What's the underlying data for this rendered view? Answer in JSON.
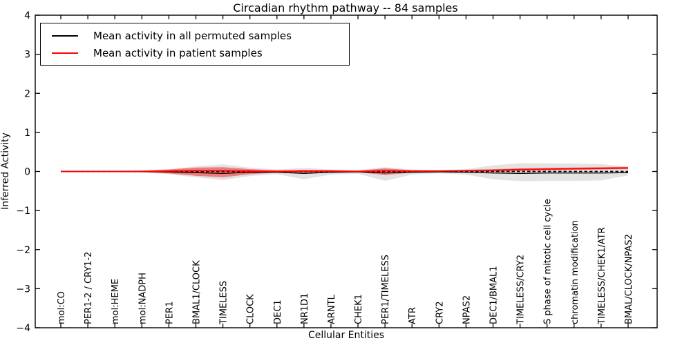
{
  "chart_data": {
    "type": "line",
    "title": "Circadian rhythm pathway -- 84 samples",
    "xlabel": "Cellular Entities",
    "ylabel": "Inferred Activity",
    "ylim": [
      -4,
      4
    ],
    "yticks": [
      -4,
      -3,
      -2,
      -1,
      0,
      1,
      2,
      3,
      4
    ],
    "grid": false,
    "legend_position": "upper left",
    "categories": [
      "mol:CO",
      "PER1-2 / CRY1-2",
      "mol:HEME",
      "mol:NADPH",
      "PER1",
      "BMAL1/CLOCK",
      "TIMELESS",
      "CLOCK",
      "DEC1",
      "NR1D1",
      "ARNTL",
      "CHEK1",
      "PER1/TIMELESS",
      "ATR",
      "CRY2",
      "NPAS2",
      "DEC1/BMAL1",
      "TIMELESS/CRY2",
      "S phase of mitotic cell cycle",
      "chromatin modification",
      "TIMELESS/CHEK1/ATR",
      "BMAL/CLOCK/NPAS2"
    ],
    "series": [
      {
        "name": "Mean activity in all permuted samples",
        "color": "#000000",
        "line_width": 1.3,
        "values": [
          0,
          0,
          0,
          0,
          -0.01,
          -0.03,
          -0.05,
          -0.02,
          -0.02,
          -0.05,
          -0.02,
          -0.01,
          -0.04,
          -0.02,
          -0.01,
          -0.02,
          -0.04,
          -0.05,
          -0.04,
          -0.04,
          -0.04,
          -0.03
        ],
        "band_upper": [
          0.02,
          0.02,
          0.02,
          0.03,
          0.06,
          0.13,
          0.18,
          0.1,
          0.05,
          0.09,
          0.05,
          0.04,
          0.11,
          0.05,
          0.04,
          0.06,
          0.16,
          0.21,
          0.21,
          0.2,
          0.19,
          0.12
        ],
        "band_lower": [
          -0.02,
          -0.02,
          -0.02,
          -0.03,
          -0.07,
          -0.15,
          -0.22,
          -0.12,
          -0.07,
          -0.2,
          -0.08,
          -0.06,
          -0.24,
          -0.08,
          -0.05,
          -0.08,
          -0.2,
          -0.25,
          -0.24,
          -0.24,
          -0.23,
          -0.1
        ],
        "band_fill": "rgba(0,0,0,0.11)"
      },
      {
        "name": "Mean activity in patient samples",
        "color": "#ff0000",
        "line_width": 1.8,
        "values": [
          0,
          0,
          0,
          0,
          0.01,
          0.02,
          0.02,
          0.01,
          0,
          0.01,
          0.01,
          0,
          0.02,
          0.01,
          0.01,
          0.02,
          0.03,
          0.05,
          0.06,
          0.07,
          0.08,
          0.09
        ],
        "band_upper": [
          0.015,
          0.015,
          0.015,
          0.02,
          0.05,
          0.1,
          0.11,
          0.06,
          0.03,
          0.04,
          0.03,
          0.02,
          0.08,
          0.03,
          0.02,
          0.04,
          0.06,
          0.08,
          0.09,
          0.1,
          0.11,
          0.12
        ],
        "band_lower": [
          -0.015,
          -0.015,
          -0.015,
          -0.02,
          -0.05,
          -0.11,
          -0.15,
          -0.07,
          -0.03,
          -0.05,
          -0.03,
          -0.02,
          -0.09,
          -0.03,
          -0.02,
          -0.01,
          -0.01,
          0.01,
          0.03,
          0.04,
          0.05,
          0.06
        ],
        "band_fill": "rgba(255,0,0,0.45)"
      }
    ],
    "zero_line": {
      "value": 0,
      "style": "dashed",
      "color": "#000000"
    }
  }
}
